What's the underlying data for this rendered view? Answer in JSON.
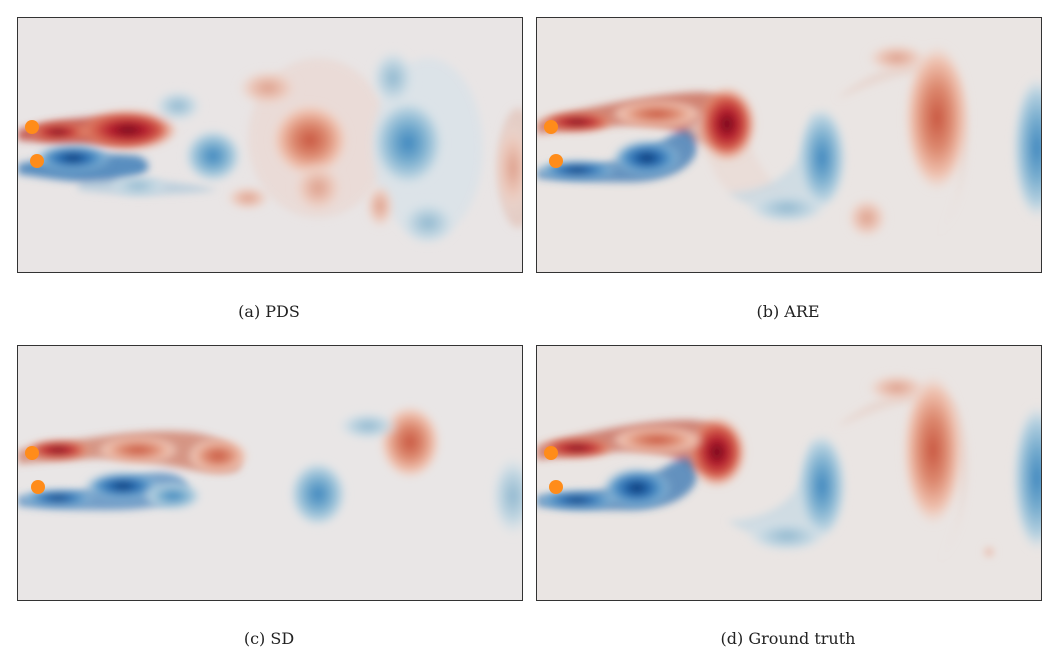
{
  "figure": {
    "panels": [
      {
        "id": "a",
        "caption": "(a) PDS"
      },
      {
        "id": "b",
        "caption": "(b) ARE"
      },
      {
        "id": "c",
        "caption": "(c) SD"
      },
      {
        "id": "d",
        "caption": "(d) Ground truth"
      }
    ],
    "colors": {
      "background": "#e8e6e6",
      "positive_vorticity": "#b2182b",
      "negative_vorticity": "#2166ac",
      "sensor_marker": "#ff8c1a"
    }
  }
}
